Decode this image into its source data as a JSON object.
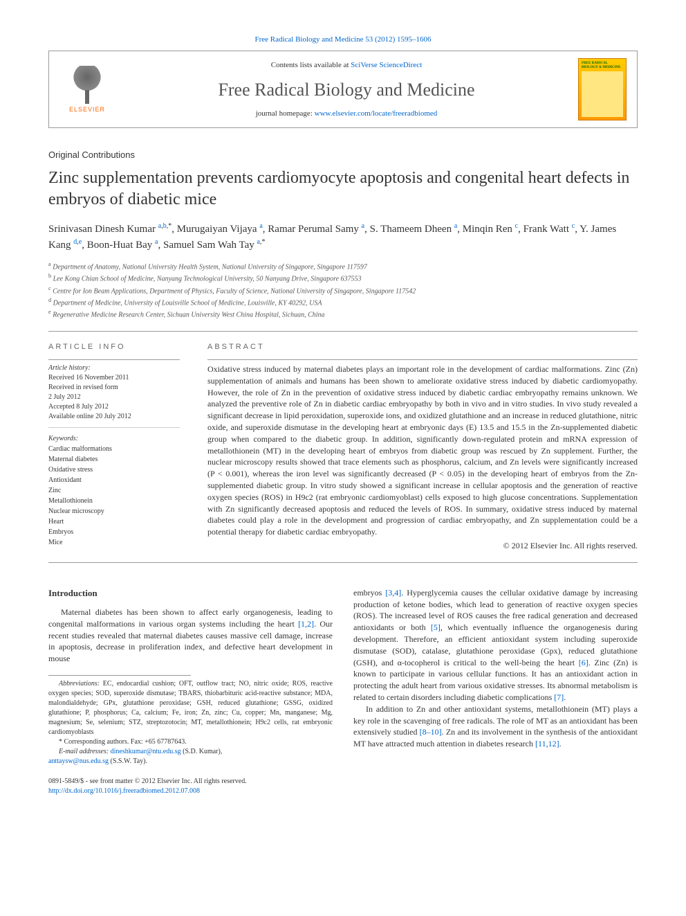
{
  "top_link": "Free Radical Biology and Medicine 53 (2012) 1595–1606",
  "header": {
    "elsevier": "ELSEVIER",
    "contents_prefix": "Contents lists available at ",
    "contents_link": "SciVerse ScienceDirect",
    "journal": "Free Radical Biology and Medicine",
    "homepage_prefix": "journal homepage: ",
    "homepage_link": "www.elsevier.com/locate/freeradbiomed",
    "cover_title": "FREE RADICAL BIOLOGY & MEDICINE"
  },
  "section_label": "Original Contributions",
  "title": "Zinc supplementation prevents cardiomyocyte apoptosis and congenital heart defects in embryos of diabetic mice",
  "authors_html": "Srinivasan Dinesh Kumar <sup><a>a</a>,<a>b</a>,*</sup>, Murugaiyan Vijaya <sup><a>a</a></sup>, Ramar Perumal Samy <sup><a>a</a></sup>, S. Thameem Dheen <sup><a>a</a></sup>, Minqin Ren <sup><a>c</a></sup>, Frank Watt <sup><a>c</a></sup>, Y. James Kang <sup><a>d</a>,<a>e</a></sup>, Boon-Huat Bay <sup><a>a</a></sup>, Samuel Sam Wah Tay <sup><a>a</a>,*</sup>",
  "affiliations": [
    {
      "sup": "a",
      "text": "Department of Anatomy, National University Health System, National University of Singapore, Singapore 117597"
    },
    {
      "sup": "b",
      "text": "Lee Kong Chian School of Medicine, Nanyang Technological University, 50 Nanyang Drive, Singapore 637553"
    },
    {
      "sup": "c",
      "text": "Centre for Ion Beam Applications, Department of Physics, Faculty of Science, National University of Singapore, Singapore 117542"
    },
    {
      "sup": "d",
      "text": "Department of Medicine, University of Louisville School of Medicine, Louisville, KY 40292, USA"
    },
    {
      "sup": "e",
      "text": "Regenerative Medicine Research Center, Sichuan University West China Hospital, Sichuan, China"
    }
  ],
  "article_info": {
    "heading": "ARTICLE INFO",
    "history_head": "Article history:",
    "history": [
      "Received 16 November 2011",
      "Received in revised form",
      "2 July 2012",
      "Accepted 8 July 2012",
      "Available online 20 July 2012"
    ],
    "keywords_head": "Keywords:",
    "keywords": [
      "Cardiac malformations",
      "Maternal diabetes",
      "Oxidative stress",
      "Antioxidant",
      "Zinc",
      "Metallothionein",
      "Nuclear microscopy",
      "Heart",
      "Embryos",
      "Mice"
    ]
  },
  "abstract": {
    "heading": "ABSTRACT",
    "text": "Oxidative stress induced by maternal diabetes plays an important role in the development of cardiac malformations. Zinc (Zn) supplementation of animals and humans has been shown to ameliorate oxidative stress induced by diabetic cardiomyopathy. However, the role of Zn in the prevention of oxidative stress induced by diabetic cardiac embryopathy remains unknown. We analyzed the preventive role of Zn in diabetic cardiac embryopathy by both in vivo and in vitro studies. In vivo study revealed a significant decrease in lipid peroxidation, superoxide ions, and oxidized glutathione and an increase in reduced glutathione, nitric oxide, and superoxide dismutase in the developing heart at embryonic days (E) 13.5 and 15.5 in the Zn-supplemented diabetic group when compared to the diabetic group. In addition, significantly down-regulated protein and mRNA expression of metallothionein (MT) in the developing heart of embryos from diabetic group was rescued by Zn supplement. Further, the nuclear microscopy results showed that trace elements such as phosphorus, calcium, and Zn levels were significantly increased (P < 0.001), whereas the iron level was significantly decreased (P < 0.05) in the developing heart of embryos from the Zn-supplemented diabetic group. In vitro study showed a significant increase in cellular apoptosis and the generation of reactive oxygen species (ROS) in H9c2 (rat embryonic cardiomyoblast) cells exposed to high glucose concentrations. Supplementation with Zn significantly decreased apoptosis and reduced the levels of ROS. In summary, oxidative stress induced by maternal diabetes could play a role in the development and progression of cardiac embryopathy, and Zn supplementation could be a potential therapy for diabetic cardiac embryopathy.",
    "copyright": "© 2012 Elsevier Inc. All rights reserved."
  },
  "intro": {
    "heading": "Introduction",
    "col1_p1_pre": "Maternal diabetes has been shown to affect early organogenesis, leading to congenital malformations in various organ systems including the heart ",
    "col1_p1_ref1": "[1,2]",
    "col1_p1_post": ". Our recent studies revealed that maternal diabetes causes massive cell damage, increase in apoptosis, decrease in proliferation index, and defective heart development in mouse",
    "col2_p1_a": "embryos ",
    "col2_p1_ref1": "[3,4]",
    "col2_p1_b": ". Hyperglycemia causes the cellular oxidative damage by increasing production of ketone bodies, which lead to generation of reactive oxygen species (ROS). The increased level of ROS causes the free radical generation and decreased antioxidants or both ",
    "col2_p1_ref2": "[5]",
    "col2_p1_c": ", which eventually influence the organogenesis during development. Therefore, an efficient antioxidant system including superoxide dismutase (SOD), catalase, glutathione peroxidase (Gpx), reduced glutathione (GSH), and α-tocopherol is critical to the well-being the heart ",
    "col2_p1_ref3": "[6]",
    "col2_p1_d": ". Zinc (Zn) is known to participate in various cellular functions. It has an antioxidant action in protecting the adult heart from various oxidative stresses. Its abnormal metabolism is related to certain disorders including diabetic complications ",
    "col2_p1_ref4": "[7]",
    "col2_p1_e": ".",
    "col2_p2_a": "In addition to Zn and other antioxidant systems, metallothionein (MT) plays a key role in the scavenging of free radicals. The role of MT as an antioxidant has been extensively studied ",
    "col2_p2_ref1": "[8–10]",
    "col2_p2_b": ". Zn and its involvement in the synthesis of the antioxidant MT have attracted much attention in diabetes research ",
    "col2_p2_ref2": "[11,12]",
    "col2_p2_c": "."
  },
  "footnotes": {
    "abbr_label": "Abbreviations:",
    "abbr_text": " EC, endocardial cushion; OFT, outflow tract; NO, nitric oxide; ROS, reactive oxygen species; SOD, superoxide dismutase; TBARS, thiobarbituric acid-reactive substance; MDA, malondialdehyde; GPx, glutathione peroxidase; GSH, reduced glutathione; GSSG, oxidized glutathione; P, phosphorus; Ca, calcium; Fe, iron; Zn, zinc; Cu, copper; Mn, manganese; Mg, magnesium; Se, selenium; STZ, streptozotocin; MT, metallothionein; H9c2 cells, rat embryonic cardiomyoblasts",
    "corr": "* Corresponding authors. Fax: +65 67787643.",
    "email_label": "E-mail addresses:",
    "email1": "dineshkumar@ntu.edu.sg",
    "email1_who": " (S.D. Kumar),",
    "email2": "anttaysw@nus.edu.sg",
    "email2_who": " (S.S.W. Tay)."
  },
  "bottom": {
    "line1": "0891-5849/$ - see front matter © 2012 Elsevier Inc. All rights reserved.",
    "doi": "http://dx.doi.org/10.1016/j.freeradbiomed.2012.07.008"
  },
  "colors": {
    "link": "#0066cc",
    "elsevier_orange": "#ff6600",
    "border": "#999999",
    "background": "#ffffff"
  }
}
